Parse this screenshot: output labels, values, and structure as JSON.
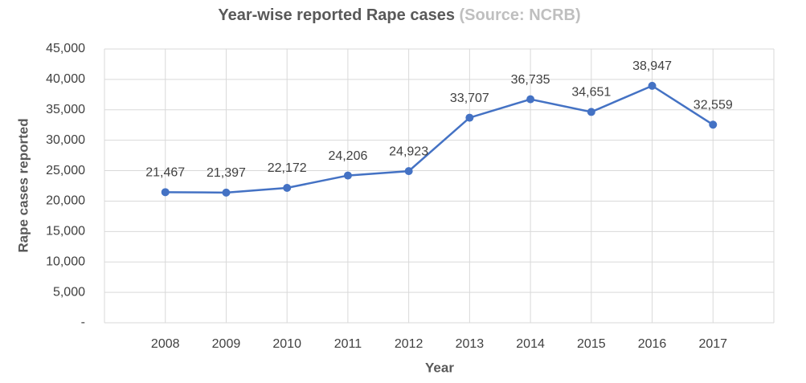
{
  "chart_data": {
    "type": "line",
    "title": "Year-wise reported Rape cases",
    "source": "(Source: NCRB)",
    "x_label": "Year",
    "y_label": "Rape cases reported",
    "categories": [
      "2008",
      "2009",
      "2010",
      "2011",
      "2012",
      "2013",
      "2014",
      "2015",
      "2016",
      "2017"
    ],
    "series": [
      {
        "name": "Rape cases reported",
        "color": "#4472c4",
        "values": [
          21467,
          21397,
          22172,
          24206,
          24923,
          33707,
          36735,
          34651,
          38947,
          32559
        ],
        "value_labels": [
          "21,467",
          "21,397",
          "22,172",
          "24,206",
          "24,923",
          "33,707",
          "36,735",
          "34,651",
          "38,947",
          "32,559"
        ]
      }
    ],
    "ylim": [
      0,
      45000
    ],
    "yticks": [
      {
        "value": 0,
        "label": "-"
      },
      {
        "value": 5000,
        "label": "5,000"
      },
      {
        "value": 10000,
        "label": "10,000"
      },
      {
        "value": 15000,
        "label": "15,000"
      },
      {
        "value": 20000,
        "label": "20,000"
      },
      {
        "value": 25000,
        "label": "25,000"
      },
      {
        "value": 30000,
        "label": "30,000"
      },
      {
        "value": 35000,
        "label": "35,000"
      },
      {
        "value": 40000,
        "label": "40,000"
      },
      {
        "value": 45000,
        "label": "45,000"
      }
    ],
    "grid": true
  }
}
